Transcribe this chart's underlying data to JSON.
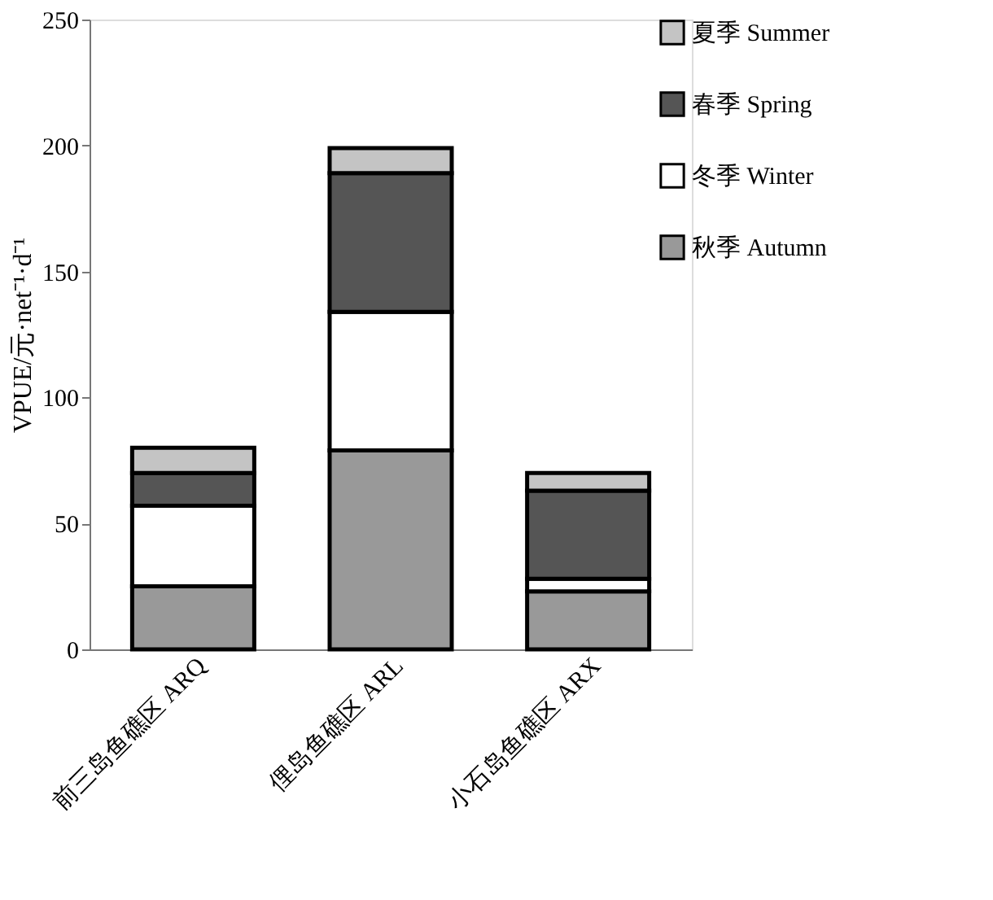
{
  "chart_data": {
    "type": "bar",
    "stacked": true,
    "ylabel": "VPUE/元·net⁻¹·d⁻¹",
    "categories": [
      "前三岛鱼礁区 ARQ",
      "俚岛鱼礁区 ARL",
      "小石岛鱼礁区 ARX"
    ],
    "series": [
      {
        "name": "秋季 Autumn",
        "color": "#999999",
        "values": [
          25,
          79,
          23
        ]
      },
      {
        "name": "冬季 Winter",
        "color": "#ffffff",
        "values": [
          32,
          55,
          5
        ]
      },
      {
        "name": "春季 Spring",
        "color": "#555555",
        "values": [
          13,
          55,
          35
        ]
      },
      {
        "name": "夏季 Summer",
        "color": "#c4c4c4",
        "values": [
          10,
          10,
          7
        ]
      }
    ],
    "ylim": [
      0,
      250
    ],
    "yticks": [
      0,
      50,
      100,
      150,
      200,
      250
    ],
    "grid": false,
    "legend": "top right"
  }
}
